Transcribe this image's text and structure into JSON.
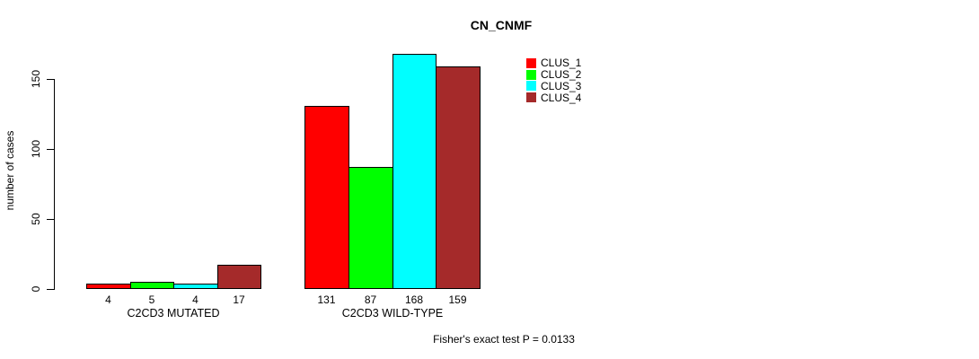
{
  "title": "CN_CNMF",
  "footer": "Fisher's exact test P = 0.0133",
  "chart_data": {
    "type": "bar",
    "title": "CN_CNMF",
    "xlabel": "",
    "ylabel": "number of cases",
    "ylim": [
      0,
      150
    ],
    "yticks": [
      0,
      50,
      100,
      150
    ],
    "grid": false,
    "legend_position": "upper-right",
    "categories": [
      "C2CD3 MUTATED",
      "C2CD3 WILD-TYPE"
    ],
    "series": [
      {
        "name": "CLUS_1",
        "color": "#ff0000",
        "values": [
          4,
          131
        ]
      },
      {
        "name": "CLUS_2",
        "color": "#00ff00",
        "values": [
          5,
          87
        ]
      },
      {
        "name": "CLUS_3",
        "color": "#00ffff",
        "values": [
          4,
          168
        ]
      },
      {
        "name": "CLUS_4",
        "color": "#a52a2a",
        "values": [
          17,
          159
        ]
      }
    ],
    "bar_value_labels": [
      [
        4,
        5,
        4,
        17
      ],
      [
        131,
        87,
        168,
        159
      ]
    ],
    "annotation": "Fisher's exact test P = 0.0133",
    "colors": {
      "bar_border": "#000000",
      "axis": "#000000",
      "background": "#ffffff"
    }
  }
}
